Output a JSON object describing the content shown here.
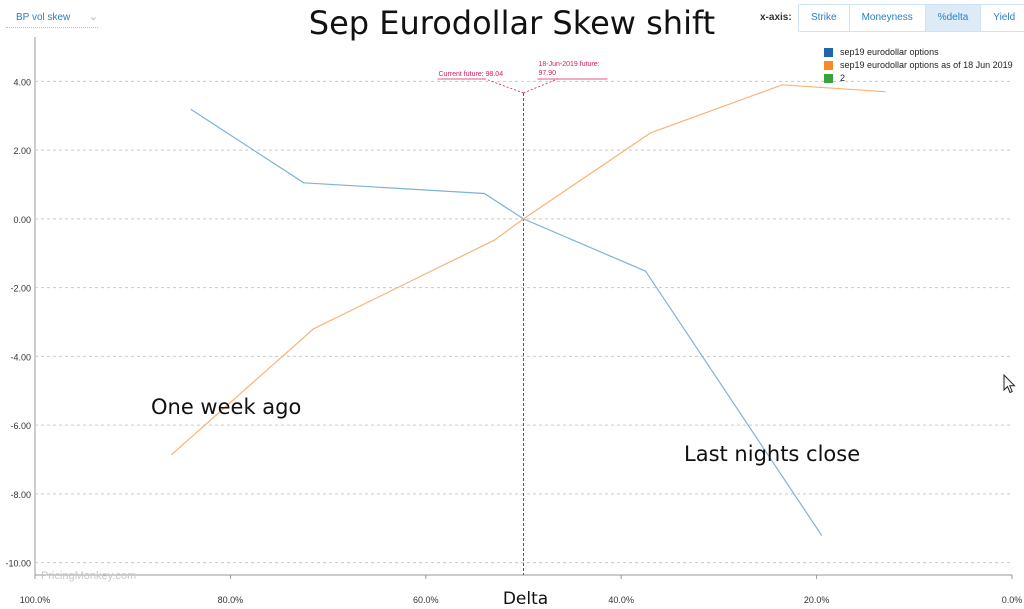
{
  "controls": {
    "dropdown_label": "BP vol skew",
    "xaxis_label": "x-axis:",
    "xaxis_options": [
      "Strike",
      "Moneyness",
      "%delta",
      "Yield"
    ],
    "active_option": "%delta"
  },
  "watermark": "PricingMonkey.com",
  "colors": {
    "series1": "#7fb1d9",
    "series2": "#f7b478",
    "series3": "#3aa23a",
    "future_line": "#d81b60",
    "legend1": "#2166ac",
    "legend2": "#f58a28"
  },
  "chart_data": {
    "type": "line",
    "title": "Sep Eurodollar Skew shift",
    "xlabel": "Delta",
    "ylabel": "",
    "xlim": [
      100,
      0
    ],
    "ylim": [
      -10.3,
      5
    ],
    "x_ticks": [
      "100.0%",
      "80.0%",
      "60.0%",
      "40.0%",
      "20.0%",
      "0.0%"
    ],
    "x_tick_values": [
      100,
      80,
      60,
      40,
      20,
      0
    ],
    "y_ticks": [
      "4.00",
      "2.00",
      "0.00",
      "-2.00",
      "-4.00",
      "-6.00",
      "-8.00",
      "-10.00"
    ],
    "y_tick_values": [
      4,
      2,
      0,
      -2,
      -4,
      -6,
      -8,
      -10
    ],
    "grid": true,
    "legend": "top-right",
    "series": [
      {
        "name": "sep19 eurodollar options",
        "x": [
          84,
          72.5,
          54,
          50,
          37.5,
          19.5
        ],
        "y": [
          3.18,
          1.05,
          0.74,
          0.0,
          -1.52,
          -9.2
        ]
      },
      {
        "name": "sep19 eurodollar options as of 18 Jun 2019",
        "x": [
          86,
          71.5,
          53,
          50,
          37,
          23.5,
          13
        ],
        "y": [
          -6.85,
          -3.2,
          -0.62,
          0.0,
          2.5,
          3.9,
          3.7
        ]
      },
      {
        "name": "2",
        "x": [],
        "y": []
      }
    ],
    "vertical_line": {
      "x": 50,
      "labels": [
        {
          "lines": [
            "Current future: 98.04"
          ],
          "side": "left"
        },
        {
          "lines": [
            "18-Jun-2019 future:",
            "97.90"
          ],
          "side": "right"
        }
      ]
    },
    "annotations": [
      "One week ago",
      "Last nights close"
    ]
  }
}
